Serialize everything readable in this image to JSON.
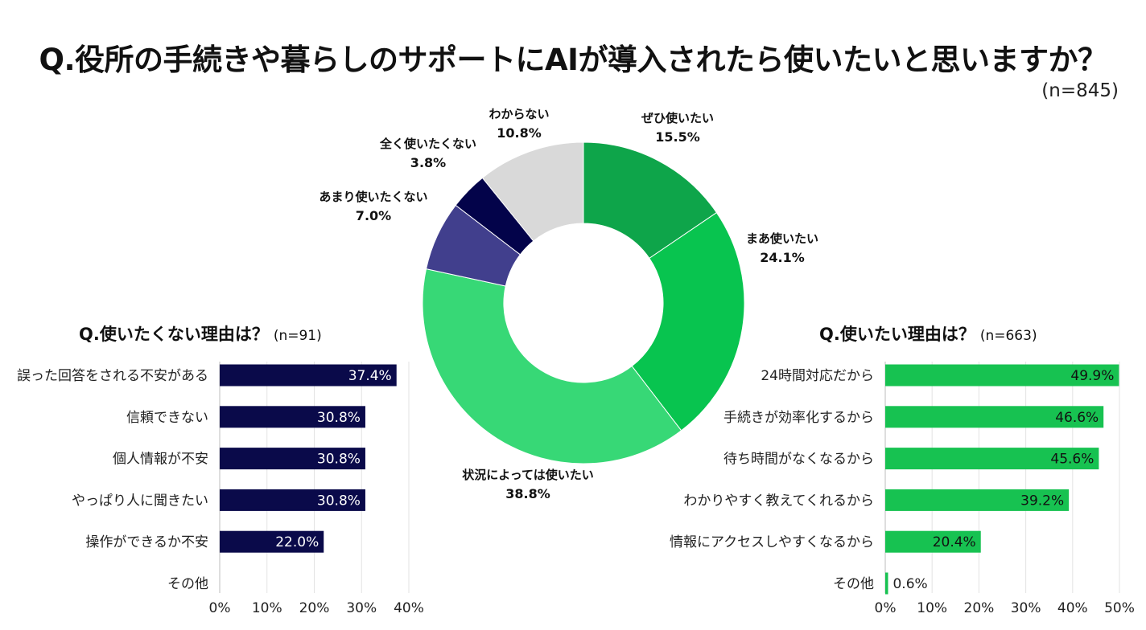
{
  "title": "Q.役所の手続きや暮らしのサポートにAIが導入されたら使いたいと思いますか？",
  "sample_size": "(n=845)",
  "colors": {
    "very_want": "#0ea54a",
    "somewhat_want": "#08c44f",
    "depends": "#37d876",
    "not_much": "#413f8d",
    "not_at_all": "#03034a",
    "unknown": "#d9d9d9",
    "bar_left": "#0a0a4a",
    "bar_right": "#17c251"
  },
  "donut": {
    "labels": [
      {
        "name": "ぜひ使いたい",
        "pct": "15.5%"
      },
      {
        "name": "まあ使いたい",
        "pct": "24.1%"
      },
      {
        "name": "状況によっては使いたい",
        "pct": "38.8%"
      },
      {
        "name": "あまり使いたくない",
        "pct": "7.0%"
      },
      {
        "name": "全く使いたくない",
        "pct": "3.8%"
      },
      {
        "name": "わからない",
        "pct": "10.8%"
      }
    ]
  },
  "left_chart": {
    "title": "Q.使いたくない理由は？",
    "n": "(n=91)"
  },
  "right_chart": {
    "title": "Q.使いたい理由は？",
    "n": "(n=663)"
  },
  "chart_data": [
    {
      "type": "pie",
      "title": "Q.役所の手続きや暮らしのサポートにAIが導入されたら使いたいと思いますか？",
      "categories": [
        "ぜひ使いたい",
        "まあ使いたい",
        "状況によっては使いたい",
        "あまり使いたくない",
        "全く使いたくない",
        "わからない"
      ],
      "values": [
        15.5,
        24.1,
        38.8,
        7.0,
        3.8,
        10.8
      ],
      "colors": [
        "#0ea54a",
        "#08c44f",
        "#37d876",
        "#413f8d",
        "#03034a",
        "#d9d9d9"
      ],
      "donut": true
    },
    {
      "type": "bar",
      "orientation": "horizontal",
      "title": "Q.使いたくない理由は？",
      "categories": [
        "誤った回答をされる不安がある",
        "信頼できない",
        "個人情報が不安",
        "やっぱり人に聞きたい",
        "操作ができるか不安",
        "その他"
      ],
      "values": [
        37.4,
        30.8,
        30.8,
        30.8,
        22.0,
        0
      ],
      "value_labels": [
        "37.4%",
        "30.8%",
        "30.8%",
        "30.8%",
        "22.0%",
        ""
      ],
      "xlim": [
        0,
        40
      ],
      "ticks": [
        "0%",
        "10%",
        "20%",
        "30%",
        "40%"
      ],
      "color": "#0a0a4a"
    },
    {
      "type": "bar",
      "orientation": "horizontal",
      "title": "Q.使いたい理由は？",
      "categories": [
        "24時間対応だから",
        "手続きが効率化するから",
        "待ち時間がなくなるから",
        "わかりやすく教えてくれるから",
        "情報にアクセスしやすくなるから",
        "その他"
      ],
      "values": [
        49.9,
        46.6,
        45.6,
        39.2,
        20.4,
        0.6
      ],
      "value_labels": [
        "49.9%",
        "46.6%",
        "45.6%",
        "39.2%",
        "20.4%",
        "0.6%"
      ],
      "xlim": [
        0,
        50
      ],
      "ticks": [
        "0%",
        "10%",
        "20%",
        "30%",
        "40%",
        "50%"
      ],
      "color": "#17c251"
    }
  ]
}
